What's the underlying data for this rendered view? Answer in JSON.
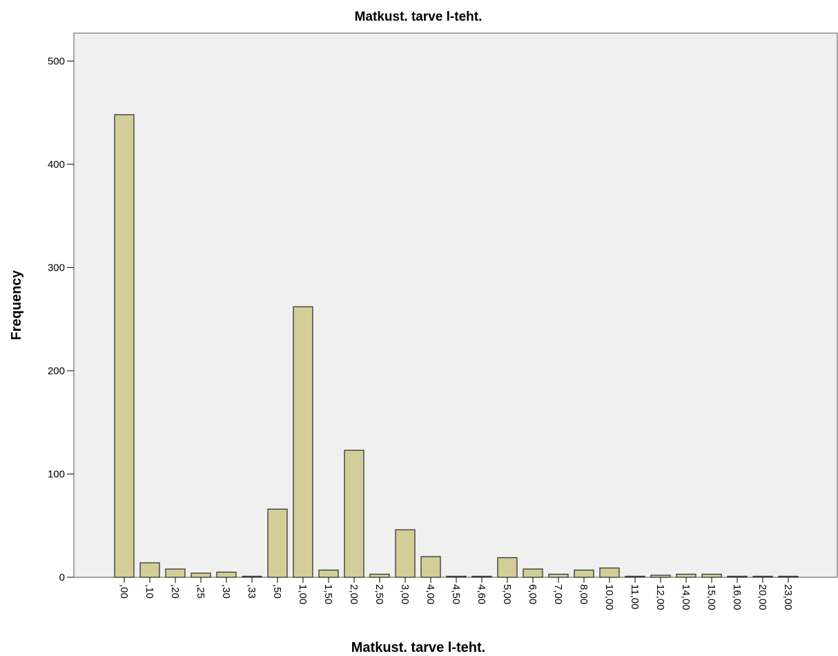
{
  "chart_data": {
    "type": "bar",
    "title": "Matkust. tarve l-teht.",
    "x_label": "Matkust. tarve l-teht.",
    "y_label": "Frequency",
    "categories": [
      ",00",
      ",10",
      ",20",
      ",25",
      ",30",
      ",33",
      ",50",
      "1,00",
      "1,50",
      "2,00",
      "2,50",
      "3,00",
      "4,00",
      "4,50",
      "4,60",
      "5,00",
      "6,00",
      "7,00",
      "8,00",
      "10,00",
      "11,00",
      "12,00",
      "14,00",
      "15,00",
      "16,00",
      "20,00",
      "23,00"
    ],
    "values": [
      448,
      14,
      8,
      4,
      5,
      1,
      66,
      262,
      7,
      123,
      3,
      46,
      20,
      1,
      1,
      19,
      8,
      3,
      7,
      9,
      1,
      2,
      3,
      3,
      1,
      1,
      1
    ],
    "color": "#d3ce97",
    "ylim": [
      0,
      527
    ],
    "yticks": [
      0,
      100,
      200,
      300,
      400,
      500
    ],
    "grid": false
  }
}
